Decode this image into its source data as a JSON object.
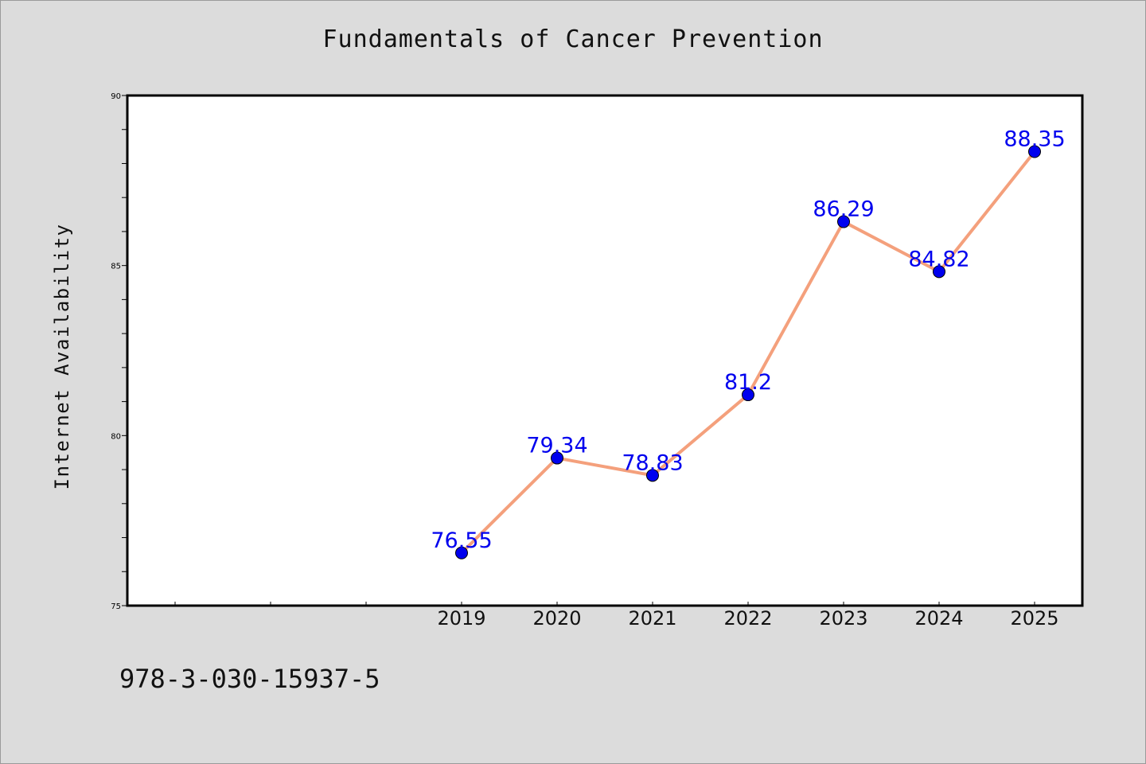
{
  "chart_data": {
    "type": "line",
    "title": "Fundamentals of Cancer Prevention",
    "xlabel": "",
    "ylabel": "Internet Availability",
    "categories": [
      "2019",
      "2020",
      "2021",
      "2022",
      "2023",
      "2024",
      "2025"
    ],
    "values": [
      76.55,
      79.34,
      78.83,
      81.2,
      86.29,
      84.82,
      88.35
    ],
    "data_labels": [
      "76.55",
      "79.34",
      "78.83",
      "81.2",
      "86.29",
      "84.82",
      "88.35"
    ],
    "ylim": [
      75,
      90
    ],
    "yticks": [
      75,
      80,
      85,
      90
    ],
    "grid": false,
    "legend": "none",
    "colors": {
      "line": "#f4a07c",
      "marker": "#0000ee",
      "label": "#0000ee",
      "background": "#dcdcdc",
      "plot_background": "#ffffff"
    }
  },
  "footer": {
    "isbn": "978-3-030-15937-5"
  }
}
